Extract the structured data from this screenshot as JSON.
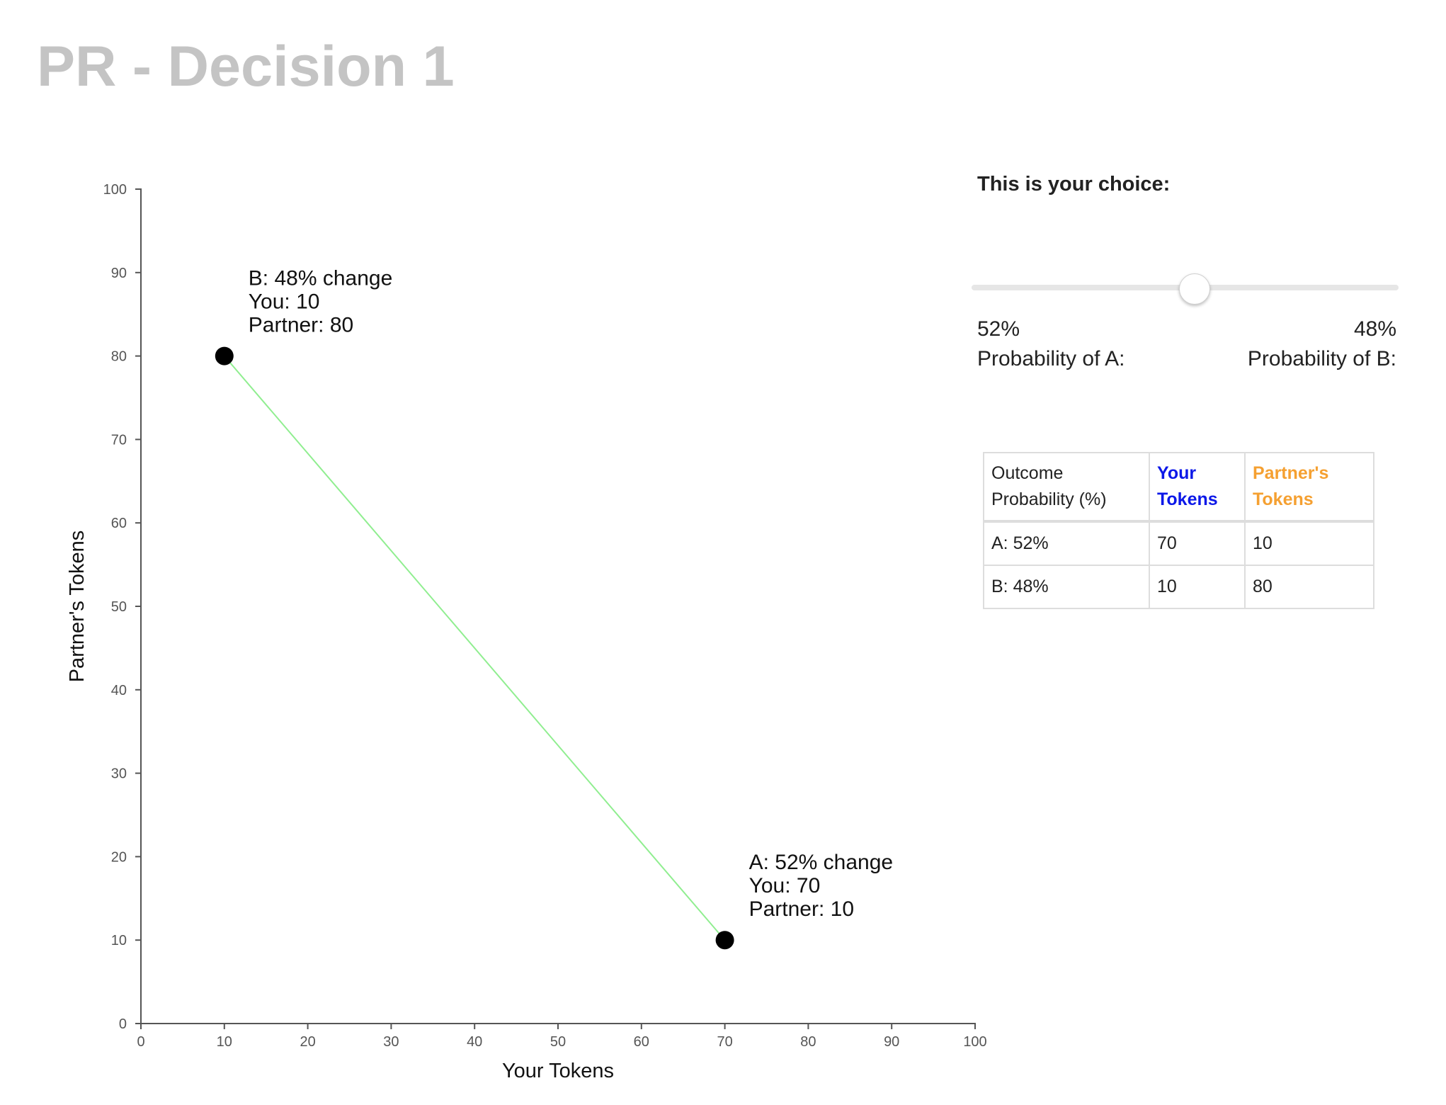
{
  "page": {
    "title": "PR - Decision 1"
  },
  "chart_data": {
    "type": "scatter",
    "xlabel": "Your Tokens",
    "ylabel": "Partner's Tokens",
    "xlim": [
      0,
      100
    ],
    "ylim": [
      0,
      100
    ],
    "x_ticks": [
      "0",
      "10",
      "20",
      "30",
      "40",
      "50",
      "60",
      "70",
      "80",
      "90",
      "100"
    ],
    "y_ticks": [
      "0",
      "10",
      "20",
      "30",
      "40",
      "50",
      "60",
      "70",
      "80",
      "90",
      "100"
    ],
    "grid": false,
    "line_color": "#90ee90",
    "point_color": "#000000",
    "points": [
      {
        "x": 10,
        "y": 80,
        "label_lines": [
          "B: 48% change",
          "You: 10",
          "Partner: 80"
        ]
      },
      {
        "x": 70,
        "y": 10,
        "label_lines": [
          "A: 52% change",
          "You: 70",
          "Partner: 10"
        ]
      }
    ]
  },
  "choice": {
    "heading": "This is your choice:",
    "slider_value_b_percent": 52,
    "prob_a_value": "52%",
    "prob_a_label": "Probability of A:",
    "prob_b_value": "48%",
    "prob_b_label": "Probability of B:"
  },
  "table": {
    "headers": {
      "outcome_line1": "Outcome",
      "outcome_line2": "Probability (%)",
      "your_line1": "Your",
      "your_line2": "Tokens",
      "partner_line1": "Partner's",
      "partner_line2": "Tokens"
    },
    "colors": {
      "your_tokens": "#0c18e8",
      "partner_tokens": "#f5a031"
    },
    "rows": [
      {
        "outcome": "A: 52%",
        "your": "70",
        "partner": "10"
      },
      {
        "outcome": "B: 48%",
        "your": "10",
        "partner": "80"
      }
    ]
  }
}
